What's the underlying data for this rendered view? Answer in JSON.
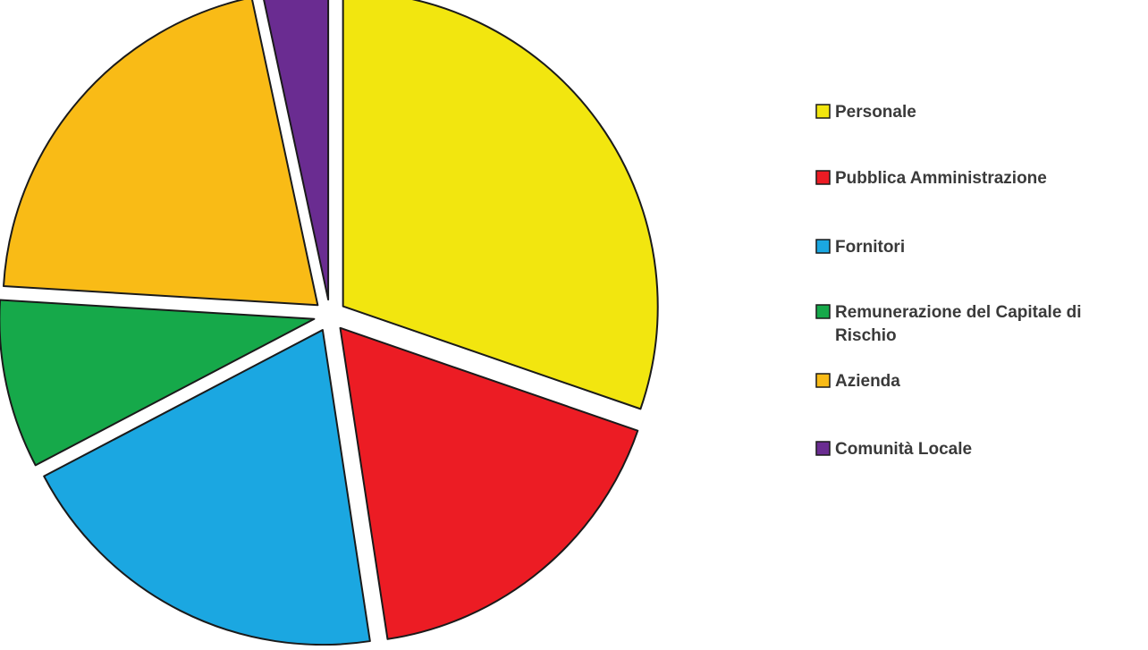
{
  "chart_data": {
    "type": "pie",
    "exploded": true,
    "title": "",
    "slices": [
      {
        "label": "Personale",
        "value": 31.5,
        "color": "#f2e60f"
      },
      {
        "label": "Pubblica Amministrazione",
        "value": 18.0,
        "color": "#ec1c24"
      },
      {
        "label": "Fornitori",
        "value": 20.5,
        "color": "#1ba7e1"
      },
      {
        "label": "Remunerazione del Capitale di Rischio",
        "value": 9.0,
        "color": "#16a94a"
      },
      {
        "label": "Azienda",
        "value": 21.5,
        "color": "#f9bb16"
      },
      {
        "label": "Comunità Locale",
        "value": 3.5,
        "color": "#6a2c91"
      }
    ],
    "legend": {
      "position": "right",
      "items": [
        {
          "label_lines": [
            "Personale"
          ]
        },
        {
          "label_lines": [
            "Pubblica Amministrazione"
          ]
        },
        {
          "label_lines": [
            "Fornitori"
          ]
        },
        {
          "label_lines": [
            "Remunerazione del Capitale di",
            "Rischio"
          ]
        },
        {
          "label_lines": [
            "Azienda"
          ]
        },
        {
          "label_lines": [
            "Comunità Locale"
          ]
        }
      ]
    }
  }
}
